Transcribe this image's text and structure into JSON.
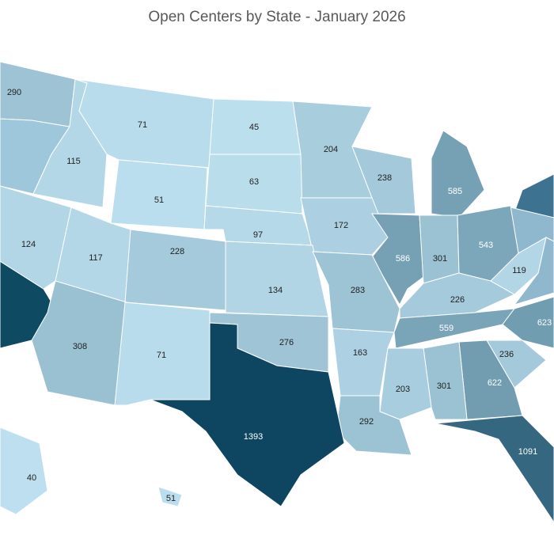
{
  "chart_data": {
    "type": "choropleth",
    "title": "Open Centers by State - January 2026",
    "values": [
      290,
      115,
      71,
      45,
      204,
      51,
      63,
      238,
      585,
      124,
      117,
      228,
      97,
      172,
      586,
      301,
      543,
      134,
      283,
      226,
      119,
      308,
      71,
      276,
      163,
      559,
      623,
      236,
      622,
      301,
      203,
      292,
      1393,
      1091,
      40,
      51
    ],
    "colors": [
      "#c2e4f3",
      "#0e4560"
    ]
  }
}
